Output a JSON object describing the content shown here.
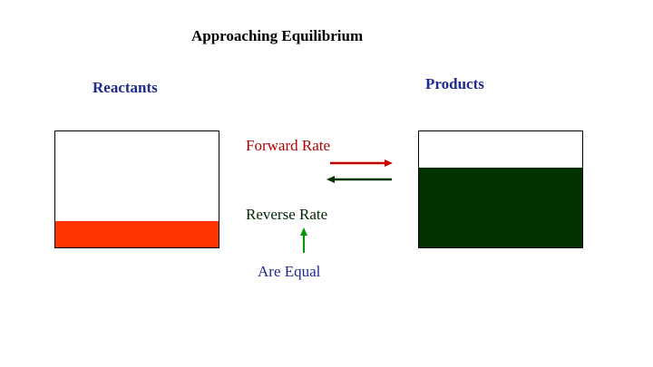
{
  "title": "Approaching Equilibrium",
  "labels": {
    "reactants": "Reactants",
    "products": "Products",
    "forward_rate": "Forward Rate",
    "reverse_rate": "Reverse Rate",
    "are_equal": "Are Equal"
  },
  "reactants_container": {
    "fill_fraction": 0.23,
    "fill_color": "#ff3300"
  },
  "products_container": {
    "fill_fraction": 0.69,
    "fill_color": "#003300"
  },
  "arrows": {
    "forward_color": "#cc0000",
    "reverse_color": "#003300",
    "up_color": "#009900"
  }
}
